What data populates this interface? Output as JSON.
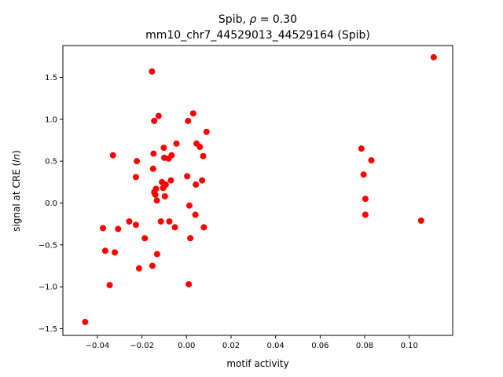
{
  "chart_data": {
    "type": "scatter",
    "title_prefix": "Spib, ",
    "title_rho": "ρ",
    "title_suffix": " = 0.30",
    "subtitle": "mm10_chr7_44529013_44529164 (Spib)",
    "xlabel": "motif activity",
    "ylabel_prefix": "signal at CRE (",
    "ylabel_italic": "ln",
    "ylabel_suffix": ")",
    "xlim": [
      -0.0555,
      0.1195
    ],
    "ylim": [
      -1.58,
      1.88
    ],
    "xticks": [
      -0.04,
      -0.02,
      0.0,
      0.02,
      0.04,
      0.06,
      0.08,
      0.1
    ],
    "xtick_labels": [
      "−0.04",
      "−0.02",
      "0.00",
      "0.02",
      "0.04",
      "0.06",
      "0.08",
      "0.10"
    ],
    "yticks": [
      -1.5,
      -1.0,
      -0.5,
      0.0,
      0.5,
      1.0,
      1.5
    ],
    "ytick_labels": [
      "−1.5",
      "−1.0",
      "−0.5",
      "0.0",
      "0.5",
      "1.0",
      "1.5"
    ],
    "grid": false,
    "legend": "none",
    "marker_color": "#ff0000",
    "points": [
      {
        "x": -0.0455,
        "y": -1.42
      },
      {
        "x": -0.0375,
        "y": -0.3
      },
      {
        "x": -0.0365,
        "y": -0.57
      },
      {
        "x": -0.0345,
        "y": -0.98
      },
      {
        "x": -0.033,
        "y": 0.57
      },
      {
        "x": -0.0322,
        "y": -0.59
      },
      {
        "x": -0.0307,
        "y": -0.31
      },
      {
        "x": -0.0257,
        "y": -0.22
      },
      {
        "x": -0.0227,
        "y": -0.26
      },
      {
        "x": -0.0227,
        "y": 0.31
      },
      {
        "x": -0.0223,
        "y": 0.5
      },
      {
        "x": -0.0213,
        "y": -0.78
      },
      {
        "x": -0.0187,
        "y": -0.42
      },
      {
        "x": -0.0155,
        "y": 1.57
      },
      {
        "x": -0.0153,
        "y": -0.75
      },
      {
        "x": -0.015,
        "y": 0.41
      },
      {
        "x": -0.0148,
        "y": 0.59
      },
      {
        "x": -0.0145,
        "y": 0.98
      },
      {
        "x": -0.0145,
        "y": 0.13
      },
      {
        "x": -0.014,
        "y": 0.1
      },
      {
        "x": -0.0137,
        "y": 0.17
      },
      {
        "x": -0.0133,
        "y": 0.03
      },
      {
        "x": -0.0132,
        "y": -0.61
      },
      {
        "x": -0.0125,
        "y": 1.04
      },
      {
        "x": -0.0115,
        "y": -0.22
      },
      {
        "x": -0.011,
        "y": 0.25
      },
      {
        "x": -0.0105,
        "y": 0.18
      },
      {
        "x": -0.0102,
        "y": 0.66
      },
      {
        "x": -0.01,
        "y": 0.54
      },
      {
        "x": -0.0097,
        "y": 0.08
      },
      {
        "x": -0.0093,
        "y": 0.22
      },
      {
        "x": -0.008,
        "y": 0.53
      },
      {
        "x": -0.0077,
        "y": -0.22
      },
      {
        "x": -0.007,
        "y": 0.27
      },
      {
        "x": -0.0067,
        "y": 0.57
      },
      {
        "x": -0.0052,
        "y": -0.29
      },
      {
        "x": -0.0045,
        "y": 0.71
      },
      {
        "x": 0.0003,
        "y": 0.32
      },
      {
        "x": 0.0007,
        "y": 0.98
      },
      {
        "x": 0.001,
        "y": -0.97
      },
      {
        "x": 0.0013,
        "y": -0.03
      },
      {
        "x": 0.0017,
        "y": -0.42
      },
      {
        "x": 0.003,
        "y": 1.07
      },
      {
        "x": 0.004,
        "y": -0.14
      },
      {
        "x": 0.0042,
        "y": 0.22
      },
      {
        "x": 0.0045,
        "y": 0.71
      },
      {
        "x": 0.006,
        "y": 0.67
      },
      {
        "x": 0.007,
        "y": 0.27
      },
      {
        "x": 0.0075,
        "y": 0.56
      },
      {
        "x": 0.0078,
        "y": -0.29
      },
      {
        "x": 0.009,
        "y": 0.85
      },
      {
        "x": 0.0785,
        "y": 0.65
      },
      {
        "x": 0.0795,
        "y": 0.34
      },
      {
        "x": 0.0803,
        "y": 0.05
      },
      {
        "x": 0.0803,
        "y": -0.14
      },
      {
        "x": 0.083,
        "y": 0.51
      },
      {
        "x": 0.1053,
        "y": -0.21
      },
      {
        "x": 0.111,
        "y": 1.74
      }
    ]
  }
}
